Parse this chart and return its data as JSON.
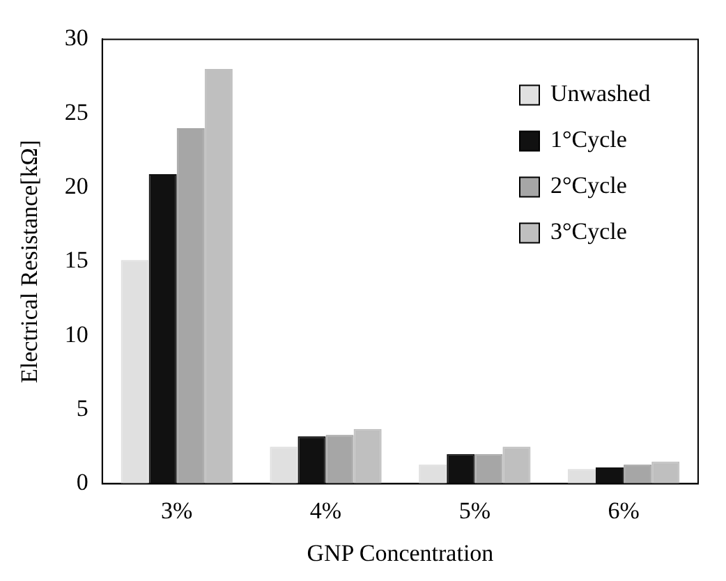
{
  "chart_data": {
    "type": "bar",
    "xlabel": "GNP Concentration",
    "ylabel": "Electrical Resistance[kΩ]",
    "categories": [
      "3%",
      "4%",
      "5%",
      "6%"
    ],
    "series": [
      {
        "name": "Unwashed",
        "color": "#e0e0e0",
        "values": [
          15.1,
          2.5,
          1.3,
          1.0
        ]
      },
      {
        "name": "1°Cycle",
        "color": "#111111",
        "values": [
          20.9,
          3.2,
          2.0,
          1.1
        ]
      },
      {
        "name": "2°Cycle",
        "color": "#a6a6a6",
        "values": [
          24,
          3.3,
          2.0,
          1.3
        ]
      },
      {
        "name": "3°Cycle",
        "color": "#bfbfbf",
        "values": [
          28,
          3.7,
          2.5,
          1.5
        ]
      }
    ],
    "ylim": [
      0,
      30
    ],
    "yticks": [
      0,
      5,
      10,
      15,
      20,
      25,
      30
    ],
    "grid": false,
    "legend": "top right"
  }
}
